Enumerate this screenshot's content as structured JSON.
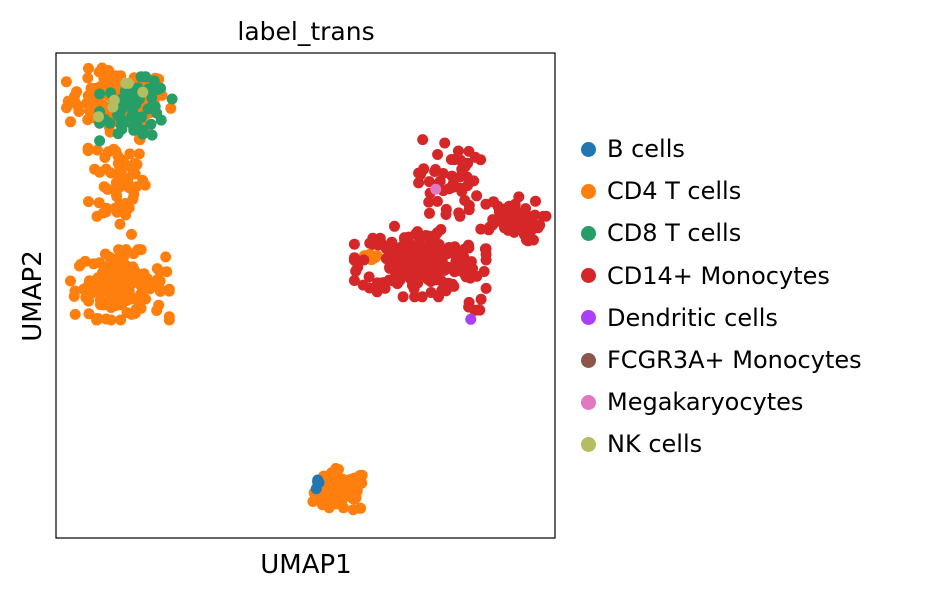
{
  "chart_data": {
    "type": "scatter",
    "title": "label_trans",
    "xlabel": "UMAP1",
    "ylabel": "UMAP2",
    "xlim": [
      0,
      10
    ],
    "ylim": [
      0,
      10
    ],
    "grid": false,
    "ticks": false,
    "legend_placement": "right-outside",
    "categories": [
      {
        "name": "B cells",
        "color": "#1f77b4"
      },
      {
        "name": "CD4 T cells",
        "color": "#ff7f0e"
      },
      {
        "name": "CD8 T cells",
        "color": "#279e68"
      },
      {
        "name": "CD14+ Monocytes",
        "color": "#d62728"
      },
      {
        "name": "Dendritic cells",
        "color": "#aa40fc"
      },
      {
        "name": "FCGR3A+ Monocytes",
        "color": "#8c564b"
      },
      {
        "name": "Megakaryocytes",
        "color": "#e377c2"
      },
      {
        "name": "NK cells",
        "color": "#b5bd61"
      }
    ],
    "clusters": [
      {
        "category": 1,
        "center": [
          1.24,
          9.03
        ],
        "spread": [
          0.5,
          0.3
        ],
        "n": 110
      },
      {
        "category": 1,
        "center": [
          1.26,
          7.4
        ],
        "spread": [
          0.28,
          0.55
        ],
        "n": 70
      },
      {
        "category": 1,
        "center": [
          1.28,
          5.22
        ],
        "spread": [
          0.45,
          0.33
        ],
        "n": 150
      },
      {
        "category": 1,
        "center": [
          5.72,
          0.95
        ],
        "spread": [
          0.26,
          0.22
        ],
        "n": 90
      },
      {
        "category": 1,
        "center": [
          6.3,
          5.84
        ],
        "spread": [
          0.12,
          0.06
        ],
        "n": 6
      },
      {
        "category": 2,
        "center": [
          1.6,
          8.85
        ],
        "spread": [
          0.33,
          0.3
        ],
        "n": 70
      },
      {
        "category": 7,
        "center": [
          1.35,
          9.1
        ],
        "spread": [
          0.3,
          0.2
        ],
        "n": 6
      },
      {
        "category": 0,
        "center": [
          5.27,
          1.12
        ],
        "spread": [
          0.04,
          0.05
        ],
        "n": 4
      },
      {
        "category": 3,
        "center": [
          7.3,
          5.7
        ],
        "spread": [
          0.6,
          0.33
        ],
        "n": 220
      },
      {
        "category": 3,
        "center": [
          9.05,
          6.55
        ],
        "spread": [
          0.35,
          0.22
        ],
        "n": 60
      },
      {
        "category": 3,
        "center": [
          7.85,
          7.35
        ],
        "spread": [
          0.3,
          0.45
        ],
        "n": 50
      },
      {
        "category": 3,
        "center": [
          8.42,
          4.72
        ],
        "spread": [
          0.07,
          0.1
        ],
        "n": 6
      },
      {
        "category": 4,
        "center": [
          8.3,
          4.52
        ],
        "spread": [
          0.01,
          0.01
        ],
        "n": 1
      },
      {
        "category": 6,
        "center": [
          7.6,
          7.2
        ],
        "spread": [
          0.03,
          0.03
        ],
        "n": 1
      }
    ]
  }
}
